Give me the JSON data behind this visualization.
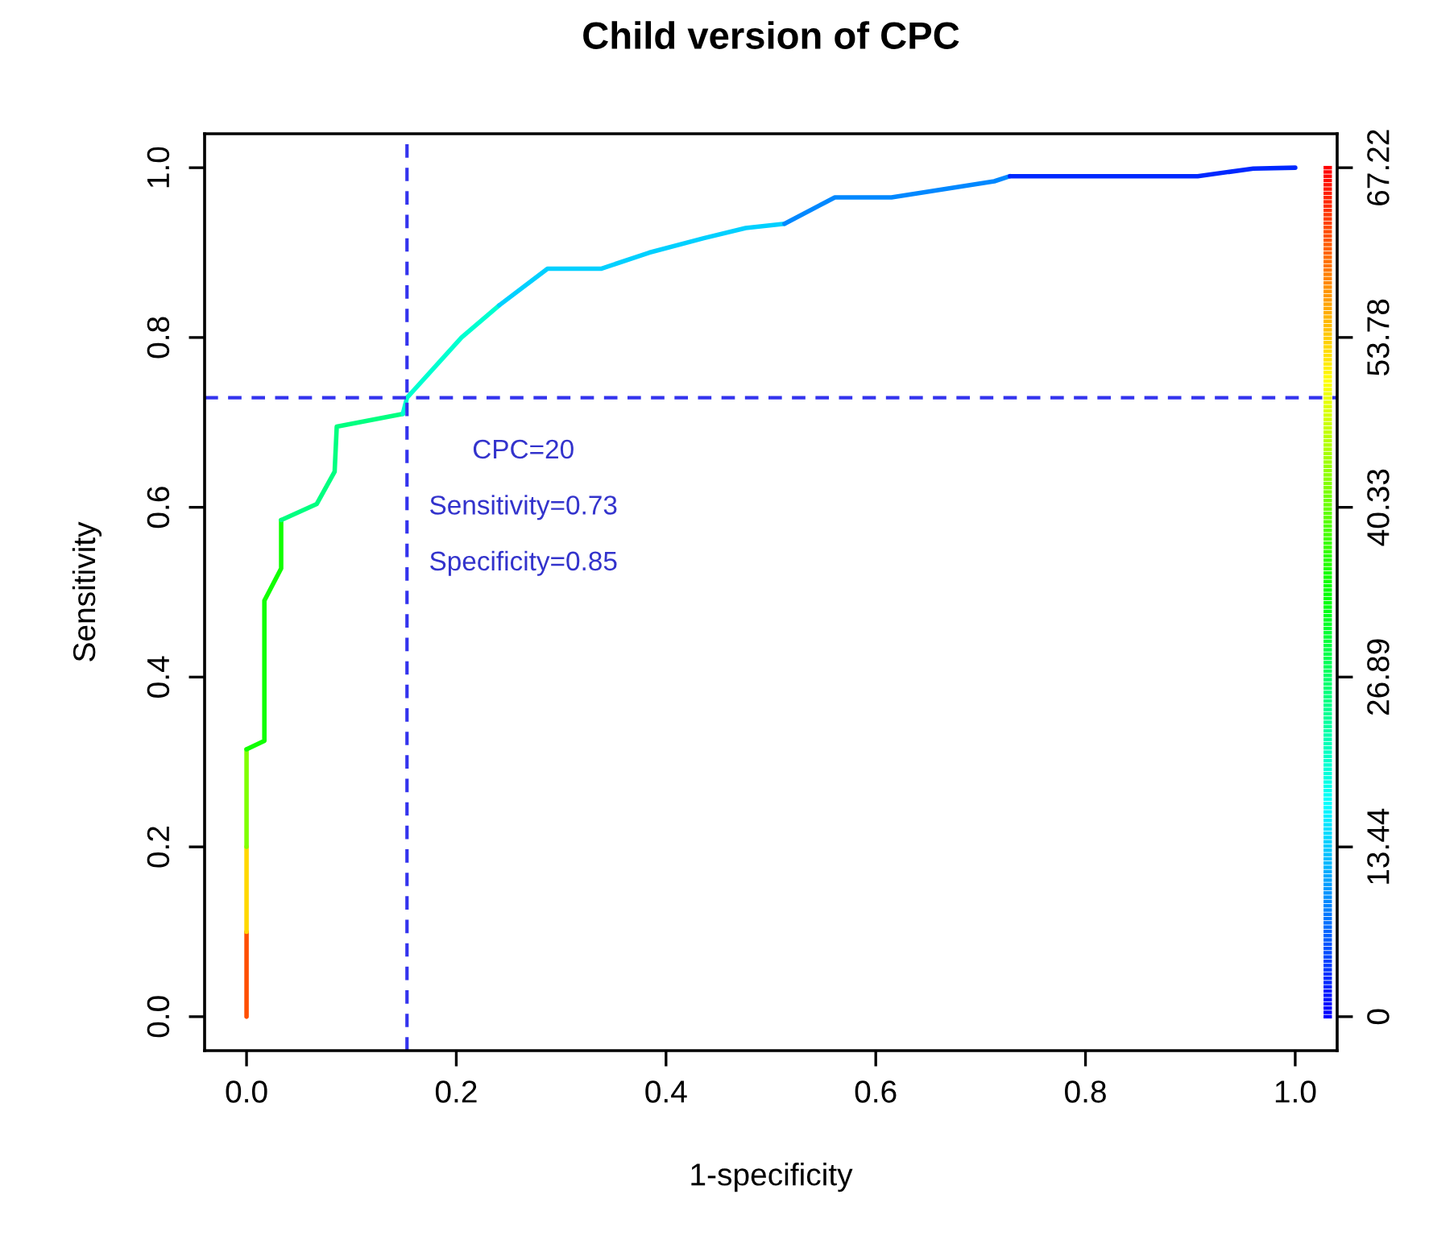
{
  "chart_data": {
    "type": "line",
    "title": "Child version of CPC",
    "xlabel": "1-specificity",
    "ylabel": "Sensitivity",
    "series": [
      {
        "x": [
          0,
          0
        ],
        "values": [
          0,
          0.1
        ],
        "color": "#ff4f00"
      },
      {
        "x": [
          0,
          0
        ],
        "values": [
          0.1,
          0.2
        ],
        "color": "#ffd800"
      },
      {
        "x": [
          0,
          0
        ],
        "values": [
          0.2,
          0.315
        ],
        "color": "#80ff00"
      },
      {
        "x": [
          0,
          0.017,
          0.017,
          0.033,
          0.033
        ],
        "values": [
          0.315,
          0.325,
          0.49,
          0.528,
          0.585
        ],
        "color": "#10ff00"
      },
      {
        "x": [
          0.033,
          0.067,
          0.084,
          0.086,
          0.149
        ],
        "values": [
          0.585,
          0.604,
          0.642,
          0.695,
          0.71
        ],
        "color": "#00ff80"
      },
      {
        "x": [
          0.149,
          0.153,
          0.205,
          0.241
        ],
        "values": [
          0.71,
          0.729,
          0.8,
          0.838
        ],
        "color": "#00ffd0"
      },
      {
        "x": [
          0.241,
          0.287,
          0.338,
          0.384,
          0.436,
          0.476,
          0.513
        ],
        "values": [
          0.838,
          0.881,
          0.881,
          0.9,
          0.917,
          0.929,
          0.934
        ],
        "color": "#00d0ff"
      },
      {
        "x": [
          0.513,
          0.561,
          0.615,
          0.713,
          0.728
        ],
        "values": [
          0.934,
          0.965,
          0.965,
          0.984,
          0.99
        ],
        "color": "#0088ff"
      },
      {
        "x": [
          0.728,
          0.907,
          0.96,
          1.0
        ],
        "values": [
          0.99,
          0.99,
          0.999,
          1.0
        ],
        "color": "#0028ff"
      }
    ],
    "xlim": [
      -0.04,
      1.04
    ],
    "ylim": [
      -0.04,
      1.04
    ],
    "xticks": [
      {
        "value": 0,
        "label": "0.0"
      },
      0.2,
      0.4,
      0.6,
      0.8,
      {
        "value": 1,
        "label": "1.0"
      }
    ],
    "yticks": [
      {
        "value": 0,
        "label": "0.0"
      },
      0.2,
      0.4,
      0.6,
      0.8,
      {
        "value": 1,
        "label": "1.0"
      }
    ],
    "y2lim": [
      -2.689,
      69.909
    ],
    "y2ticks": [
      0,
      13.44,
      26.89,
      40.33,
      53.78,
      67.22
    ],
    "ref_lines": [
      {
        "axis": "x",
        "value": 0.153,
        "color": "#3333ee",
        "line_style": "dashed"
      },
      {
        "axis": "y",
        "value": 0.729,
        "color": "#3333ee",
        "line_style": "dashed"
      }
    ],
    "annotations": [
      "CPC=20",
      "Sensitivity=0.73",
      "Specificity=0.85"
    ],
    "grid": false,
    "legend": false
  }
}
